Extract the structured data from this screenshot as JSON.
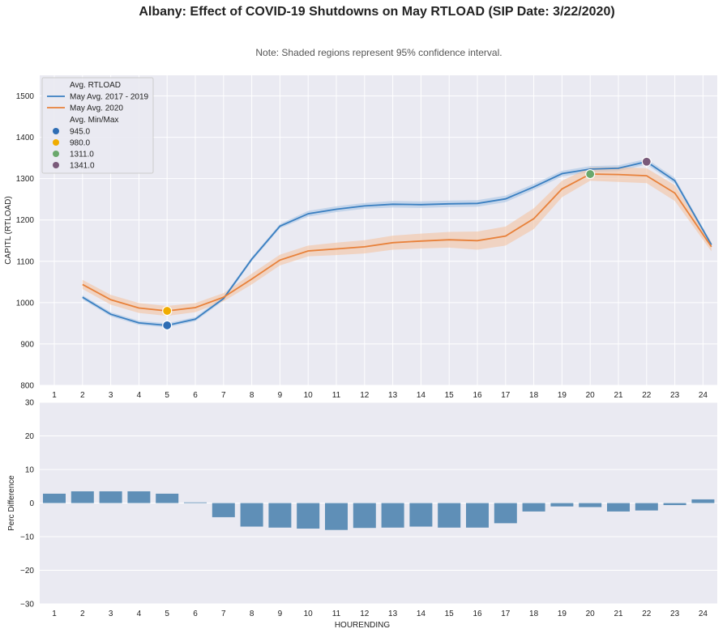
{
  "figure": {
    "title": "Albany: Effect of COVID-19 Shutdowns on May RTLOAD (SIP Date: 3/22/2020)",
    "note": "Note: Shaded regions represent 95% confidence interval."
  },
  "chart_data": [
    {
      "type": "line",
      "ylabel": "CAPITL (RTLOAD)",
      "xlabel": "",
      "x_ticks": [
        "1",
        "2",
        "3",
        "4",
        "5",
        "6",
        "7",
        "8",
        "9",
        "10",
        "11",
        "12",
        "13",
        "14",
        "15",
        "16",
        "17",
        "18",
        "19",
        "20",
        "21",
        "22",
        "23",
        "24"
      ],
      "xlim": [
        0.5,
        24.3
      ],
      "ylim": [
        800,
        1550
      ],
      "y_ticks": [
        800,
        900,
        1000,
        1100,
        1200,
        1300,
        1400,
        1500
      ],
      "grid": true,
      "legend_position": "top-left",
      "legend": {
        "title_lines": "Avg. RTLOAD",
        "title_points": "Avg. Min/Max"
      },
      "series": [
        {
          "name": "May Avg. 2017 - 2019",
          "color": "#3a7fc1",
          "band_color": "#a8c4e4",
          "x": [
            2,
            3,
            4,
            5,
            6,
            7,
            8,
            9,
            10,
            11,
            12,
            13,
            14,
            15,
            16,
            17,
            18,
            19,
            20,
            21,
            22,
            23,
            24.3
          ],
          "values": [
            1013,
            972,
            951,
            945,
            960,
            1010,
            1105,
            1185,
            1215,
            1226,
            1234,
            1238,
            1237,
            1239,
            1240,
            1251,
            1280,
            1312,
            1323,
            1325,
            1341,
            1295,
            1140
          ],
          "lower": [
            1008,
            967,
            946,
            940,
            955,
            1005,
            1100,
            1180,
            1208,
            1219,
            1227,
            1230,
            1229,
            1231,
            1232,
            1243,
            1273,
            1305,
            1316,
            1318,
            1334,
            1288,
            1135
          ],
          "upper": [
            1018,
            977,
            956,
            950,
            965,
            1015,
            1110,
            1190,
            1222,
            1233,
            1241,
            1246,
            1245,
            1247,
            1248,
            1259,
            1287,
            1319,
            1330,
            1332,
            1348,
            1302,
            1145
          ]
        },
        {
          "name": "May Avg. 2020",
          "color": "#e8813a",
          "band_color": "#f3c3a2",
          "x": [
            2,
            3,
            4,
            5,
            6,
            7,
            8,
            9,
            10,
            11,
            12,
            13,
            14,
            15,
            16,
            17,
            18,
            19,
            20,
            21,
            22,
            23,
            24.3
          ],
          "values": [
            1044,
            1007,
            987,
            980,
            988,
            1013,
            1057,
            1103,
            1125,
            1130,
            1135,
            1145,
            1149,
            1152,
            1150,
            1161,
            1203,
            1275,
            1311,
            1310,
            1307,
            1265,
            1135
          ],
          "lower": [
            1033,
            995,
            975,
            968,
            977,
            1003,
            1044,
            1090,
            1112,
            1115,
            1119,
            1128,
            1131,
            1133,
            1128,
            1138,
            1178,
            1255,
            1295,
            1292,
            1289,
            1246,
            1124
          ],
          "upper": [
            1055,
            1019,
            999,
            992,
            999,
            1023,
            1070,
            1116,
            1138,
            1145,
            1151,
            1162,
            1167,
            1171,
            1172,
            1184,
            1228,
            1295,
            1327,
            1328,
            1325,
            1284,
            1146
          ]
        }
      ],
      "points": [
        {
          "label": "945.0",
          "x": 5,
          "y": 945,
          "color": "#2e6db4"
        },
        {
          "label": "980.0",
          "x": 5,
          "y": 980,
          "color": "#f0ac00"
        },
        {
          "label": "1311.0",
          "x": 20,
          "y": 1311,
          "color": "#6aa86c"
        },
        {
          "label": "1341.0",
          "x": 22,
          "y": 1341,
          "color": "#7a5a7a"
        }
      ]
    },
    {
      "type": "bar",
      "xlabel": "HOURENDING",
      "ylabel": "Perc Difference",
      "categories": [
        "1",
        "2",
        "3",
        "4",
        "5",
        "6",
        "7",
        "8",
        "9",
        "10",
        "11",
        "12",
        "13",
        "14",
        "15",
        "16",
        "17",
        "18",
        "19",
        "20",
        "21",
        "22",
        "23",
        "24"
      ],
      "values": [
        2.8,
        3.5,
        3.5,
        3.5,
        2.8,
        0.2,
        -4.2,
        -7.0,
        -7.3,
        -7.6,
        -8.0,
        -7.4,
        -7.3,
        -7.0,
        -7.3,
        -7.3,
        -6.0,
        -2.5,
        -1.0,
        -1.2,
        -2.5,
        -2.2,
        -0.6,
        1.1
      ],
      "ylim": [
        -30,
        30
      ],
      "y_ticks": [
        -30,
        -20,
        -10,
        0,
        10,
        20,
        30
      ],
      "bar_color": "#5f8fb7",
      "grid": true
    }
  ]
}
